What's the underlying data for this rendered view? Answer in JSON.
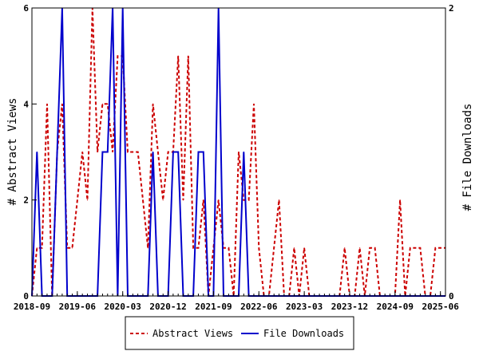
{
  "chart_data": {
    "type": "line",
    "title": "",
    "x_tick_labels": [
      "2018-09",
      "2019-06",
      "2020-03",
      "2020-12",
      "2021-09",
      "2022-06",
      "2023-03",
      "2023-12",
      "2024-09",
      "2025-06"
    ],
    "x_tick_months": [
      "2018-09",
      "2019-06",
      "2020-03",
      "2020-12",
      "2021-09",
      "2022-06",
      "2023-03",
      "2023-12",
      "2024-09",
      "2025-06"
    ],
    "x_range": [
      "2018-09",
      "2025-07"
    ],
    "y_left": {
      "label": "# Abstract Views",
      "range": [
        0,
        6
      ],
      "ticks": [
        "0",
        "2",
        "4",
        "6"
      ]
    },
    "y_right": {
      "label": "# File Downloads",
      "range": [
        0,
        2
      ],
      "ticks": [
        "0",
        "2"
      ]
    },
    "grid": false,
    "legend_placement": "bottom",
    "series": [
      {
        "name": "Abstract Views",
        "axis": "left",
        "color": "#cc0000",
        "style": "dashed",
        "points": [
          [
            "2018-09",
            0
          ],
          [
            "2018-10",
            1
          ],
          [
            "2018-11",
            1
          ],
          [
            "2018-12",
            4
          ],
          [
            "2019-01",
            0
          ],
          [
            "2019-02",
            3
          ],
          [
            "2019-03",
            4
          ],
          [
            "2019-04",
            1
          ],
          [
            "2019-05",
            1
          ],
          [
            "2019-06",
            2
          ],
          [
            "2019-07",
            3
          ],
          [
            "2019-08",
            2
          ],
          [
            "2019-09",
            6
          ],
          [
            "2019-10",
            3
          ],
          [
            "2019-11",
            4
          ],
          [
            "2019-12",
            4
          ],
          [
            "2020-01",
            3
          ],
          [
            "2020-02",
            5
          ],
          [
            "2020-03",
            5
          ],
          [
            "2020-04",
            3
          ],
          [
            "2020-05",
            3
          ],
          [
            "2020-06",
            3
          ],
          [
            "2020-07",
            2
          ],
          [
            "2020-08",
            1
          ],
          [
            "2020-09",
            4
          ],
          [
            "2020-10",
            3
          ],
          [
            "2020-11",
            2
          ],
          [
            "2020-12",
            3
          ],
          [
            "2021-01",
            3
          ],
          [
            "2021-02",
            5
          ],
          [
            "2021-03",
            2
          ],
          [
            "2021-04",
            5
          ],
          [
            "2021-05",
            1
          ],
          [
            "2021-06",
            1
          ],
          [
            "2021-07",
            2
          ],
          [
            "2021-08",
            0
          ],
          [
            "2021-09",
            1
          ],
          [
            "2021-10",
            2
          ],
          [
            "2021-11",
            1
          ],
          [
            "2021-12",
            1
          ],
          [
            "2022-01",
            0
          ],
          [
            "2022-02",
            3
          ],
          [
            "2022-03",
            2
          ],
          [
            "2022-04",
            2
          ],
          [
            "2022-05",
            4
          ],
          [
            "2022-06",
            1
          ],
          [
            "2022-07",
            0
          ],
          [
            "2022-08",
            0
          ],
          [
            "2022-09",
            1
          ],
          [
            "2022-10",
            2
          ],
          [
            "2022-11",
            0
          ],
          [
            "2022-12",
            0
          ],
          [
            "2023-01",
            1
          ],
          [
            "2023-02",
            0
          ],
          [
            "2023-03",
            1
          ],
          [
            "2023-04",
            0
          ],
          [
            "2023-05",
            0
          ],
          [
            "2023-06",
            0
          ],
          [
            "2023-07",
            0
          ],
          [
            "2023-08",
            0
          ],
          [
            "2023-09",
            0
          ],
          [
            "2023-10",
            0
          ],
          [
            "2023-11",
            1
          ],
          [
            "2023-12",
            0
          ],
          [
            "2024-01",
            0
          ],
          [
            "2024-02",
            1
          ],
          [
            "2024-03",
            0
          ],
          [
            "2024-04",
            1
          ],
          [
            "2024-05",
            1
          ],
          [
            "2024-06",
            0
          ],
          [
            "2024-07",
            0
          ],
          [
            "2024-08",
            0
          ],
          [
            "2024-09",
            0
          ],
          [
            "2024-10",
            2
          ],
          [
            "2024-11",
            0
          ],
          [
            "2024-12",
            1
          ],
          [
            "2025-01",
            1
          ],
          [
            "2025-02",
            1
          ],
          [
            "2025-03",
            0
          ],
          [
            "2025-04",
            0
          ],
          [
            "2025-05",
            1
          ],
          [
            "2025-06",
            1
          ],
          [
            "2025-07",
            1
          ]
        ]
      },
      {
        "name": "File Downloads",
        "axis": "right",
        "color": "#0000cc",
        "style": "solid",
        "points": [
          [
            "2018-09",
            0
          ],
          [
            "2018-10",
            1
          ],
          [
            "2018-11",
            0
          ],
          [
            "2018-12",
            0
          ],
          [
            "2019-01",
            0
          ],
          [
            "2019-02",
            1
          ],
          [
            "2019-03",
            2
          ],
          [
            "2019-04",
            0
          ],
          [
            "2019-05",
            0
          ],
          [
            "2019-06",
            0
          ],
          [
            "2019-07",
            0
          ],
          [
            "2019-08",
            0
          ],
          [
            "2019-09",
            0
          ],
          [
            "2019-10",
            0
          ],
          [
            "2019-11",
            1
          ],
          [
            "2019-12",
            1
          ],
          [
            "2020-01",
            2
          ],
          [
            "2020-02",
            0
          ],
          [
            "2020-03",
            2
          ],
          [
            "2020-04",
            0
          ],
          [
            "2020-05",
            0
          ],
          [
            "2020-06",
            0
          ],
          [
            "2020-07",
            0
          ],
          [
            "2020-08",
            0
          ],
          [
            "2020-09",
            1
          ],
          [
            "2020-10",
            0
          ],
          [
            "2020-11",
            0
          ],
          [
            "2020-12",
            0
          ],
          [
            "2021-01",
            1
          ],
          [
            "2021-02",
            1
          ],
          [
            "2021-03",
            0
          ],
          [
            "2021-04",
            0
          ],
          [
            "2021-05",
            0
          ],
          [
            "2021-06",
            1
          ],
          [
            "2021-07",
            1
          ],
          [
            "2021-08",
            0
          ],
          [
            "2021-09",
            0
          ],
          [
            "2021-10",
            2
          ],
          [
            "2021-11",
            0
          ],
          [
            "2021-12",
            0
          ],
          [
            "2022-01",
            0
          ],
          [
            "2022-02",
            0
          ],
          [
            "2022-03",
            1
          ],
          [
            "2022-04",
            0
          ],
          [
            "2022-05",
            0
          ],
          [
            "2022-06",
            0
          ],
          [
            "2022-07",
            0
          ],
          [
            "2022-08",
            0
          ],
          [
            "2022-09",
            0
          ],
          [
            "2022-10",
            0
          ],
          [
            "2022-11",
            0
          ],
          [
            "2022-12",
            0
          ],
          [
            "2023-01",
            0
          ],
          [
            "2023-02",
            0
          ],
          [
            "2023-03",
            0
          ],
          [
            "2023-04",
            0
          ],
          [
            "2023-05",
            0
          ],
          [
            "2023-06",
            0
          ],
          [
            "2023-07",
            0
          ],
          [
            "2023-08",
            0
          ],
          [
            "2023-09",
            0
          ],
          [
            "2023-10",
            0
          ],
          [
            "2023-11",
            0
          ],
          [
            "2023-12",
            0
          ],
          [
            "2024-01",
            0
          ],
          [
            "2024-02",
            0
          ],
          [
            "2024-03",
            0
          ],
          [
            "2024-04",
            0
          ],
          [
            "2024-05",
            0
          ],
          [
            "2024-06",
            0
          ],
          [
            "2024-07",
            0
          ],
          [
            "2024-08",
            0
          ],
          [
            "2024-09",
            0
          ],
          [
            "2024-10",
            0
          ],
          [
            "2024-11",
            0
          ],
          [
            "2024-12",
            0
          ],
          [
            "2025-01",
            0
          ],
          [
            "2025-02",
            0
          ],
          [
            "2025-03",
            0
          ],
          [
            "2025-04",
            0
          ],
          [
            "2025-05",
            0
          ],
          [
            "2025-06",
            0
          ],
          [
            "2025-07",
            0
          ]
        ]
      }
    ]
  },
  "legend": {
    "abstract_views": "Abstract Views",
    "file_downloads": "File Downloads"
  }
}
